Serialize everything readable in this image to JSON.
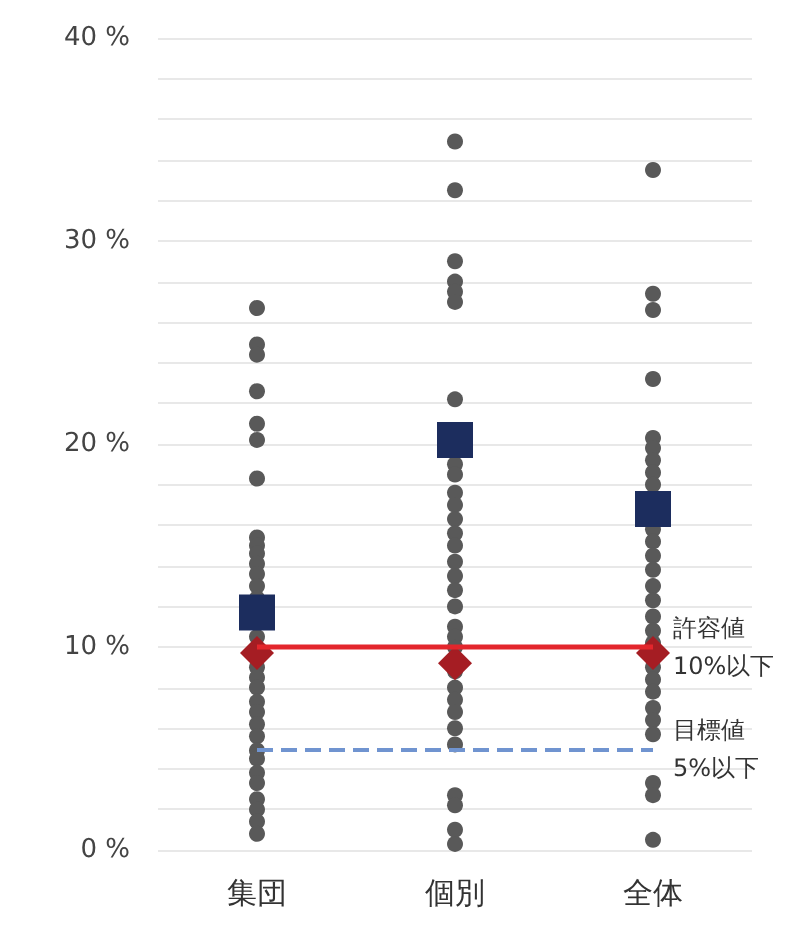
{
  "chart_data": {
    "type": "scatter",
    "categories": [
      "集団",
      "個別",
      "全体"
    ],
    "series": [
      {
        "color": "#595959",
        "marker": "circle",
        "x": [
          "集団",
          "集団",
          "集団",
          "集団",
          "集団",
          "集団",
          "集団",
          "集団",
          "集団",
          "集団",
          "集団",
          "集団",
          "集団",
          "集団",
          "集団",
          "集団",
          "集団",
          "集団",
          "集団",
          "集団",
          "集団",
          "集団",
          "集団",
          "集団",
          "集団",
          "集団",
          "集団",
          "集団",
          "集団",
          "集団",
          "個別",
          "個別",
          "個別",
          "個別",
          "個別",
          "個別",
          "個別",
          "個別",
          "個別",
          "個別",
          "個別",
          "個別",
          "個別",
          "個別",
          "個別",
          "個別",
          "個別",
          "個別",
          "個別",
          "個別",
          "個別",
          "個別",
          "個別",
          "個別",
          "個別",
          "個別",
          "個別",
          "個別",
          "個別",
          "個別",
          "個別",
          "全体",
          "全体",
          "全体",
          "全体",
          "全体",
          "全体",
          "全体",
          "全体",
          "全体",
          "全体",
          "全体",
          "全体",
          "全体",
          "全体",
          "全体",
          "全体",
          "全体",
          "全体",
          "全体",
          "全体",
          "全体",
          "全体",
          "全体",
          "全体",
          "全体",
          "全体",
          "全体"
        ],
        "values": [
          26.7,
          24.9,
          24.4,
          22.6,
          21.0,
          20.2,
          18.3,
          15.4,
          15.0,
          14.6,
          14.1,
          13.6,
          13.0,
          12.4,
          10.5,
          9.0,
          8.5,
          8.0,
          7.3,
          6.8,
          6.2,
          5.6,
          4.9,
          4.5,
          3.8,
          3.3,
          2.5,
          2.0,
          1.4,
          0.8,
          34.9,
          32.5,
          29.0,
          28.0,
          27.5,
          27.0,
          22.2,
          19.0,
          18.5,
          17.6,
          17.0,
          16.3,
          15.6,
          15.0,
          14.2,
          13.5,
          12.8,
          12.0,
          11.0,
          10.5,
          10.0,
          8.8,
          8.0,
          7.4,
          6.8,
          6.0,
          5.2,
          2.7,
          2.2,
          1.0,
          0.3,
          33.5,
          27.4,
          26.6,
          23.2,
          20.3,
          19.8,
          19.2,
          18.6,
          18.0,
          15.8,
          15.2,
          14.5,
          13.8,
          13.0,
          12.3,
          11.5,
          10.8,
          10.2,
          9.0,
          8.4,
          7.8,
          7.0,
          6.4,
          5.7,
          3.3,
          2.7,
          0.5
        ]
      },
      {
        "color": "#1c2d5e",
        "marker": "square",
        "x": [
          "集団",
          "個別",
          "全体"
        ],
        "values": [
          11.7,
          20.2,
          16.8
        ]
      },
      {
        "color": "#a51d23",
        "marker": "diamond",
        "x": [
          "集団",
          "個別",
          "全体"
        ],
        "values": [
          9.7,
          9.2,
          9.7
        ]
      }
    ],
    "ylim": [
      0,
      40
    ],
    "yticks": [
      {
        "value": 0,
        "label": "0 %"
      },
      {
        "value": 2,
        "label": null
      },
      {
        "value": 4,
        "label": null
      },
      {
        "value": 6,
        "label": null
      },
      {
        "value": 8,
        "label": null
      },
      {
        "value": 10,
        "label": "10 %"
      },
      {
        "value": 12,
        "label": null
      },
      {
        "value": 14,
        "label": null
      },
      {
        "value": 16,
        "label": null
      },
      {
        "value": 18,
        "label": null
      },
      {
        "value": 20,
        "label": "20 %"
      },
      {
        "value": 22,
        "label": null
      },
      {
        "value": 24,
        "label": null
      },
      {
        "value": 26,
        "label": null
      },
      {
        "value": 28,
        "label": null
      },
      {
        "value": 30,
        "label": "30 %"
      },
      {
        "value": 32,
        "label": null
      },
      {
        "value": 34,
        "label": null
      },
      {
        "value": 36,
        "label": null
      },
      {
        "value": 38,
        "label": null
      },
      {
        "value": 40,
        "label": "40 %"
      }
    ],
    "ref_lines": [
      {
        "axis": "y",
        "value": 10,
        "label": "許容値\n10%以下",
        "color": "#e3262c",
        "line_style": "solid"
      },
      {
        "axis": "y",
        "value": 5,
        "label": "目標値\n5%以下",
        "color": "#7094d0",
        "line_style": "dashed"
      }
    ],
    "grid": "y"
  }
}
